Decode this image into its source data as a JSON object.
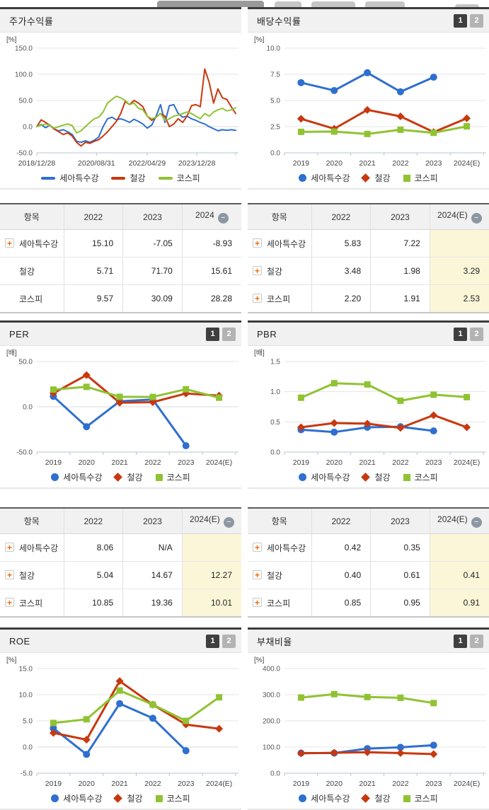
{
  "icons": {
    "plus": "+",
    "minus": "−"
  },
  "pager": {
    "one": "1",
    "two": "2"
  },
  "colors": {
    "seah": "#2e6fd0",
    "steel": "#c8380f",
    "kospi": "#8fc332",
    "pager_active": "#3f3f3f",
    "pager_inactive": "#b3b3b3",
    "estimate_cell_bg": "#fcf6d9",
    "plus_icon": "#f06a00",
    "minus_badge": "#8d97a3",
    "tab_stub_dark": "#9a9a9a",
    "tab_stub_light": "#c6c6c6"
  },
  "chart_data": [
    {
      "id": "price-return",
      "type": "line",
      "title": "주가수익률",
      "unit": "[%]",
      "ylim": [
        -50,
        150
      ],
      "yticks": [
        "150.0",
        "100.0",
        "50.0",
        "0.0",
        "-50.0"
      ],
      "xticks": [
        "2018/12/28",
        "2020/08/31",
        "2022/04/29",
        "2023/12/28"
      ],
      "xtick_pos": [
        0,
        0.3,
        0.555,
        0.805
      ],
      "pager": false,
      "series": [
        {
          "name": "세아특수강",
          "color": "#2e6fd0",
          "marker": "line",
          "values": [
            0,
            4,
            -2,
            3,
            -5,
            -8,
            -6,
            -10,
            -15,
            -28,
            -30,
            -27,
            -30,
            -26,
            -20,
            0,
            15,
            18,
            13,
            15,
            12,
            8,
            14,
            10,
            5,
            -3,
            3,
            20,
            42,
            8,
            40,
            42,
            25,
            18,
            20,
            15,
            12,
            8,
            5,
            0,
            -4,
            -8,
            -6,
            -7,
            -6,
            -7
          ]
        },
        {
          "name": "철강",
          "color": "#c8380f",
          "marker": "line",
          "values": [
            0,
            13,
            8,
            2,
            -5,
            -10,
            -15,
            -12,
            -18,
            -30,
            -37,
            -30,
            -32,
            -28,
            -25,
            -18,
            -10,
            0,
            10,
            25,
            48,
            42,
            50,
            45,
            38,
            20,
            12,
            18,
            25,
            20,
            0,
            5,
            15,
            8,
            20,
            40,
            42,
            38,
            110,
            85,
            45,
            72,
            55,
            52,
            38,
            25
          ]
        },
        {
          "name": "코스피",
          "color": "#8fc332",
          "marker": "line",
          "values": [
            0,
            3,
            5,
            2,
            -3,
            0,
            3,
            5,
            2,
            -12,
            -8,
            0,
            8,
            15,
            18,
            28,
            45,
            52,
            58,
            55,
            50,
            42,
            45,
            35,
            32,
            20,
            15,
            18,
            25,
            12,
            15,
            20,
            22,
            25,
            28,
            25,
            20,
            15,
            25,
            20,
            28,
            32,
            35,
            30,
            32,
            36
          ]
        }
      ]
    },
    {
      "id": "dividend-yield",
      "type": "line",
      "title": "배당수익률",
      "unit": "[%]",
      "ylim": [
        0,
        10
      ],
      "yticks": [
        "10.0",
        "7.5",
        "5.0",
        "2.5",
        "0.0"
      ],
      "categories": [
        "2019",
        "2020",
        "2021",
        "2022",
        "2023",
        "2024(E)"
      ],
      "pager": true,
      "series": [
        {
          "name": "세아특수강",
          "color": "#2e6fd0",
          "marker": "circle",
          "values": [
            6.7,
            5.95,
            7.65,
            5.83,
            7.22,
            null
          ]
        },
        {
          "name": "철강",
          "color": "#c8380f",
          "marker": "diamond",
          "values": [
            3.25,
            2.3,
            4.1,
            3.48,
            1.98,
            3.29
          ]
        },
        {
          "name": "코스피",
          "color": "#8fc332",
          "marker": "square",
          "values": [
            2.0,
            2.03,
            1.8,
            2.2,
            1.91,
            2.53
          ]
        }
      ]
    },
    {
      "id": "per",
      "type": "line",
      "title": "PER",
      "unit": "[배]",
      "ylim": [
        -50,
        50
      ],
      "yticks": [
        "50.0",
        "0.0",
        "-50.0"
      ],
      "categories": [
        "2019",
        "2020",
        "2021",
        "2022",
        "2023",
        "2024(E)"
      ],
      "pager": true,
      "series": [
        {
          "name": "세아특수강",
          "color": "#2e6fd0",
          "marker": "circle",
          "values": [
            11.5,
            -22,
            6,
            8.06,
            -43,
            null
          ]
        },
        {
          "name": "철강",
          "color": "#c8380f",
          "marker": "diamond",
          "values": [
            15,
            35,
            4.5,
            5.04,
            14.67,
            12.27
          ]
        },
        {
          "name": "코스피",
          "color": "#8fc332",
          "marker": "square",
          "values": [
            19,
            22,
            11,
            10.85,
            19.36,
            10.01
          ]
        }
      ]
    },
    {
      "id": "pbr",
      "type": "line",
      "title": "PBR",
      "unit": "[배]",
      "ylim": [
        0,
        1.5
      ],
      "yticks": [
        "1.5",
        "1.0",
        "0.5",
        "0.0"
      ],
      "categories": [
        "2019",
        "2020",
        "2021",
        "2022",
        "2023",
        "2024(E)"
      ],
      "pager": true,
      "series": [
        {
          "name": "세아특수강",
          "color": "#2e6fd0",
          "marker": "circle",
          "values": [
            0.37,
            0.33,
            0.41,
            0.42,
            0.35,
            null
          ]
        },
        {
          "name": "철강",
          "color": "#c8380f",
          "marker": "diamond",
          "values": [
            0.41,
            0.48,
            0.47,
            0.4,
            0.61,
            0.41
          ]
        },
        {
          "name": "코스피",
          "color": "#8fc332",
          "marker": "square",
          "values": [
            0.9,
            1.14,
            1.12,
            0.85,
            0.95,
            0.91
          ]
        }
      ]
    },
    {
      "id": "roe",
      "type": "line",
      "title": "ROE",
      "unit": "[%]",
      "ylim": [
        -5,
        15
      ],
      "yticks": [
        "15.0",
        "10.0",
        "5.0",
        "0.0",
        "-5.0"
      ],
      "categories": [
        "2019",
        "2020",
        "2021",
        "2022",
        "2023",
        "2024(E)"
      ],
      "pager": true,
      "series": [
        {
          "name": "세아특수강",
          "color": "#2e6fd0",
          "marker": "circle",
          "values": [
            3.6,
            -1.4,
            8.3,
            5.5,
            -0.7,
            null
          ]
        },
        {
          "name": "철강",
          "color": "#c8380f",
          "marker": "diamond",
          "values": [
            2.7,
            1.4,
            12.6,
            8.1,
            4.3,
            3.5
          ]
        },
        {
          "name": "코스피",
          "color": "#8fc332",
          "marker": "square",
          "values": [
            4.6,
            5.3,
            10.8,
            8.1,
            5.0,
            9.5
          ]
        }
      ]
    },
    {
      "id": "debt-ratio",
      "type": "line",
      "title": "부채비율",
      "unit": "[%]",
      "ylim": [
        0,
        400
      ],
      "yticks": [
        "400.0",
        "300.0",
        "200.0",
        "100.0",
        "0.0"
      ],
      "categories": [
        "2019",
        "2020",
        "2021",
        "2022",
        "2023",
        "2024(E)"
      ],
      "pager": true,
      "series": [
        {
          "name": "세아특수강",
          "color": "#2e6fd0",
          "marker": "circle",
          "values": [
            77,
            77,
            94,
            99,
            107,
            null
          ]
        },
        {
          "name": "철강",
          "color": "#c8380f",
          "marker": "diamond",
          "values": [
            76,
            78,
            80,
            77,
            73,
            null
          ]
        },
        {
          "name": "코스피",
          "color": "#8fc332",
          "marker": "square",
          "values": [
            289,
            302,
            291,
            288,
            268,
            null
          ]
        }
      ]
    }
  ],
  "tables": [
    {
      "id": "price-return-table",
      "headers": [
        "항목",
        "2022",
        "2023",
        "2024"
      ],
      "rows": [
        {
          "label": "세아특수강",
          "plus": true,
          "values": [
            "15.10",
            "-7.05",
            "-8.93"
          ]
        },
        {
          "label": "철강",
          "plus": false,
          "values": [
            "5.71",
            "71.70",
            "15.61"
          ]
        },
        {
          "label": "코스피",
          "plus": false,
          "values": [
            "9.57",
            "30.09",
            "28.28"
          ]
        }
      ]
    },
    {
      "id": "dividend-yield-table",
      "headers": [
        "항목",
        "2022",
        "2023",
        "2024(E)"
      ],
      "rows": [
        {
          "label": "세아특수강",
          "plus": true,
          "values": [
            "5.83",
            "7.22",
            ""
          ]
        },
        {
          "label": "철강",
          "plus": true,
          "values": [
            "3.48",
            "1.98",
            "3.29"
          ]
        },
        {
          "label": "코스피",
          "plus": true,
          "values": [
            "2.20",
            "1.91",
            "2.53"
          ]
        }
      ]
    },
    {
      "id": "per-table",
      "headers": [
        "항목",
        "2022",
        "2023",
        "2024(E)"
      ],
      "rows": [
        {
          "label": "세아특수강",
          "plus": true,
          "values": [
            "8.06",
            "N/A",
            ""
          ]
        },
        {
          "label": "철강",
          "plus": true,
          "values": [
            "5.04",
            "14.67",
            "12.27"
          ]
        },
        {
          "label": "코스피",
          "plus": true,
          "values": [
            "10.85",
            "19.36",
            "10.01"
          ]
        }
      ]
    },
    {
      "id": "pbr-table",
      "headers": [
        "항목",
        "2022",
        "2023",
        "2024(E)"
      ],
      "rows": [
        {
          "label": "세아특수강",
          "plus": true,
          "values": [
            "0.42",
            "0.35",
            ""
          ]
        },
        {
          "label": "철강",
          "plus": true,
          "values": [
            "0.40",
            "0.61",
            "0.41"
          ]
        },
        {
          "label": "코스피",
          "plus": true,
          "values": [
            "0.85",
            "0.95",
            "0.91"
          ]
        }
      ]
    }
  ]
}
